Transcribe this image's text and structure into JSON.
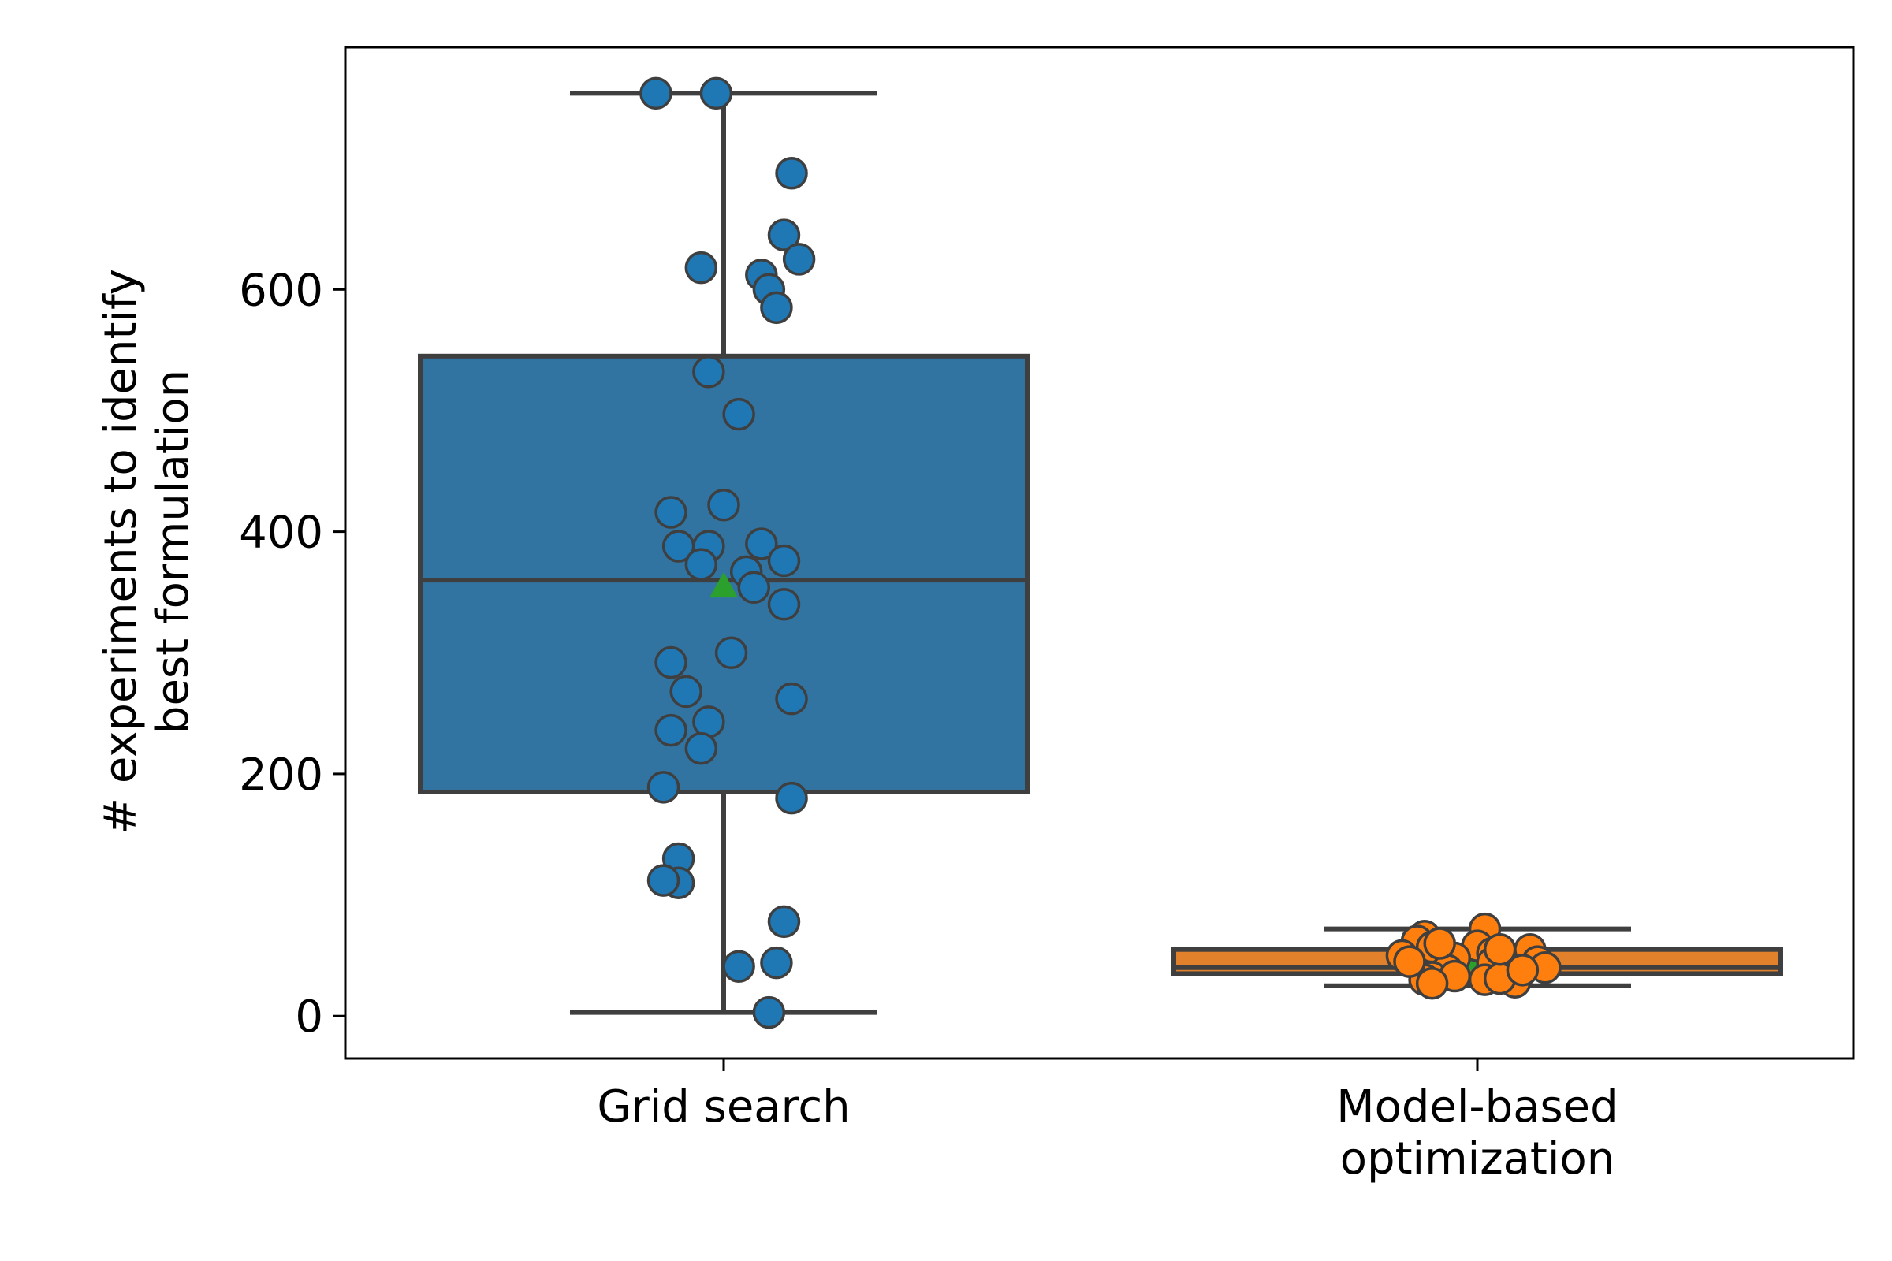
{
  "chart_data": {
    "type": "box",
    "ylabel": "# experiments to identify\nbest formulation",
    "xlabel": "",
    "ylim": [
      -35,
      800
    ],
    "yticks": [
      0,
      200,
      400,
      600
    ],
    "grid": false,
    "legend": "none",
    "categories": [
      "Grid search",
      "Model-based\noptimization"
    ],
    "series": [
      {
        "color": "#1f77b4",
        "box_color": "#3274a1",
        "box": {
          "whisker_low": 3,
          "q1": 185,
          "median": 360,
          "q3": 545,
          "whisker_high": 762
        },
        "mean": 355,
        "points": [
          {
            "x": -0.09,
            "y": 762
          },
          {
            "x": -0.01,
            "y": 762
          },
          {
            "x": 0.09,
            "y": 696
          },
          {
            "x": 0.08,
            "y": 645
          },
          {
            "x": 0.1,
            "y": 625
          },
          {
            "x": -0.03,
            "y": 618
          },
          {
            "x": 0.05,
            "y": 612
          },
          {
            "x": 0.06,
            "y": 600
          },
          {
            "x": 0.07,
            "y": 585
          },
          {
            "x": -0.02,
            "y": 532
          },
          {
            "x": 0.02,
            "y": 497
          },
          {
            "x": 0.0,
            "y": 422
          },
          {
            "x": -0.07,
            "y": 416
          },
          {
            "x": -0.02,
            "y": 388
          },
          {
            "x": 0.05,
            "y": 390
          },
          {
            "x": -0.06,
            "y": 388
          },
          {
            "x": -0.03,
            "y": 373
          },
          {
            "x": 0.03,
            "y": 367
          },
          {
            "x": 0.08,
            "y": 376
          },
          {
            "x": 0.04,
            "y": 354
          },
          {
            "x": 0.08,
            "y": 340
          },
          {
            "x": 0.01,
            "y": 300
          },
          {
            "x": -0.07,
            "y": 292
          },
          {
            "x": -0.05,
            "y": 268
          },
          {
            "x": 0.09,
            "y": 262
          },
          {
            "x": -0.02,
            "y": 243
          },
          {
            "x": -0.07,
            "y": 236
          },
          {
            "x": -0.03,
            "y": 221
          },
          {
            "x": -0.08,
            "y": 189
          },
          {
            "x": 0.09,
            "y": 180
          },
          {
            "x": -0.06,
            "y": 130
          },
          {
            "x": -0.06,
            "y": 110
          },
          {
            "x": -0.08,
            "y": 112
          },
          {
            "x": 0.08,
            "y": 78
          },
          {
            "x": 0.07,
            "y": 44
          },
          {
            "x": 0.02,
            "y": 41
          },
          {
            "x": 0.06,
            "y": 3
          }
        ]
      },
      {
        "color": "#ff7f0e",
        "box_color": "#e1812c",
        "box": {
          "whisker_low": 25,
          "q1": 35,
          "median": 40,
          "q3": 55,
          "whisker_high": 72
        },
        "mean": 47,
        "points": [
          {
            "x": 0.01,
            "y": 72
          },
          {
            "x": -0.07,
            "y": 66
          },
          {
            "x": -0.08,
            "y": 62
          },
          {
            "x": -0.06,
            "y": 57
          },
          {
            "x": 0.07,
            "y": 55
          },
          {
            "x": 0.0,
            "y": 58
          },
          {
            "x": 0.02,
            "y": 52
          },
          {
            "x": -0.1,
            "y": 50
          },
          {
            "x": -0.03,
            "y": 48
          },
          {
            "x": 0.08,
            "y": 45
          },
          {
            "x": 0.09,
            "y": 40
          },
          {
            "x": 0.02,
            "y": 44
          },
          {
            "x": -0.04,
            "y": 38
          },
          {
            "x": 0.05,
            "y": 36
          },
          {
            "x": -0.06,
            "y": 32
          },
          {
            "x": -0.07,
            "y": 30
          },
          {
            "x": 0.01,
            "y": 30
          },
          {
            "x": 0.05,
            "y": 28
          },
          {
            "x": -0.03,
            "y": 33
          },
          {
            "x": 0.03,
            "y": 31
          },
          {
            "x": 0.06,
            "y": 38
          },
          {
            "x": -0.06,
            "y": 27
          },
          {
            "x": -0.09,
            "y": 45
          },
          {
            "x": 0.03,
            "y": 55
          },
          {
            "x": -0.05,
            "y": 60
          }
        ]
      }
    ]
  }
}
